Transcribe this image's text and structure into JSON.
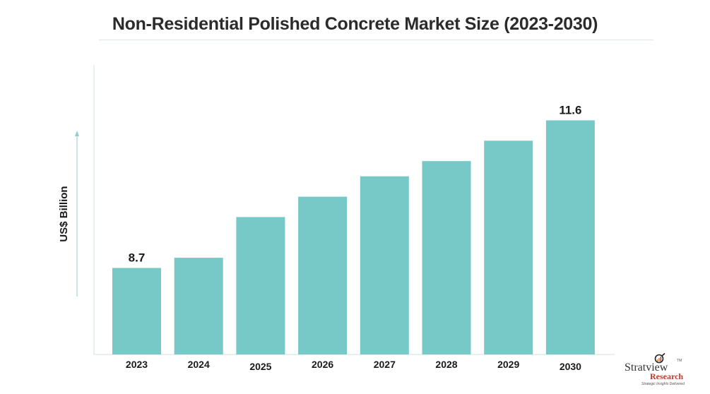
{
  "chart_data": {
    "type": "bar",
    "title": "Non-Residential Polished Concrete Market Size (2023-2030)",
    "xlabel": "",
    "ylabel": "US$ Billion",
    "categories": [
      "2023",
      "2024",
      "2025",
      "2026",
      "2027",
      "2028",
      "2029",
      "2030"
    ],
    "values": [
      8.7,
      8.9,
      9.7,
      10.1,
      10.5,
      10.8,
      11.2,
      11.6
    ],
    "data_labels": {
      "2023": "8.7",
      "2030": "11.6"
    },
    "ylim": [
      7.0,
      12.3
    ],
    "grid": false,
    "bar_color": "#76c9c6",
    "axis_color": "#d7e6e6"
  },
  "branding": {
    "name": "Stratview",
    "trademark": "TM",
    "research": "Research",
    "tagline": "Strategic Insights Delivered"
  }
}
